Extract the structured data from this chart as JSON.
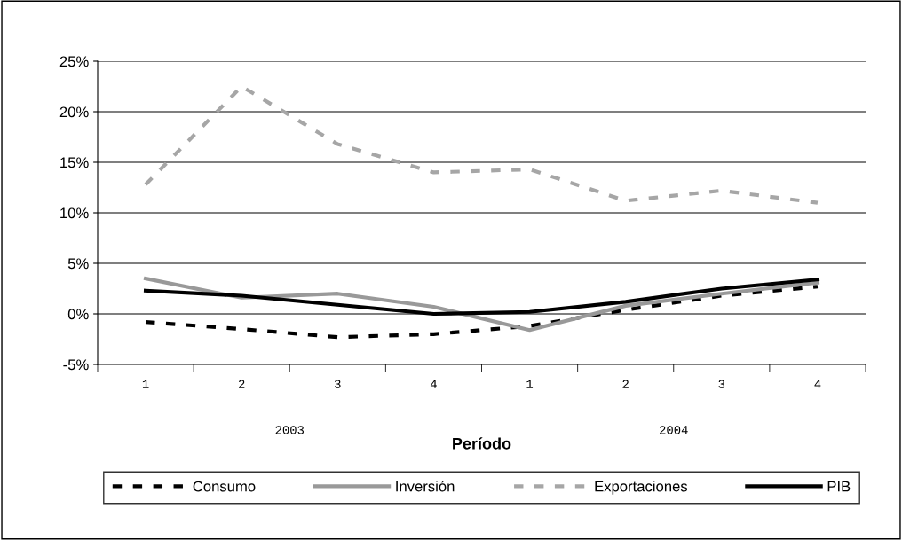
{
  "chart_data": {
    "type": "line",
    "xlabel": "Período",
    "categories": [
      "1",
      "2",
      "3",
      "4",
      "1",
      "2",
      "3",
      "4"
    ],
    "annotations": [
      "2003",
      "2004"
    ],
    "ylim": [
      -5,
      25
    ],
    "yticks": [
      {
        "value": -5,
        "label": "-5%"
      },
      {
        "value": 0,
        "label": "0%"
      },
      {
        "value": 5,
        "label": "5%"
      },
      {
        "value": 10,
        "label": "10%"
      },
      {
        "value": 15,
        "label": "15%"
      },
      {
        "value": 20,
        "label": "20%"
      },
      {
        "value": 25,
        "label": "25%"
      }
    ],
    "grid": "y",
    "legend": "bottom",
    "marker": "none",
    "series": [
      {
        "name": "Consumo",
        "color": "#000000",
        "line_style": "dashed",
        "values": [
          -0.8,
          -1.5,
          -2.3,
          -2.0,
          -1.2,
          0.4,
          1.8,
          2.7
        ]
      },
      {
        "name": "Inversión",
        "color": "#999999",
        "line_style": "solid",
        "values": [
          3.5,
          1.6,
          2.0,
          0.7,
          -1.6,
          0.8,
          2.0,
          3.1
        ]
      },
      {
        "name": "Exportaciones",
        "color": "#a6a6a6",
        "line_style": "dashed",
        "values": [
          12.8,
          22.5,
          16.8,
          14.0,
          14.3,
          11.2,
          12.2,
          11.0
        ]
      },
      {
        "name": "PIB",
        "color": "#000000",
        "line_style": "solid",
        "values": [
          2.3,
          1.8,
          0.9,
          0.0,
          0.2,
          1.2,
          2.5,
          3.4
        ]
      }
    ]
  }
}
